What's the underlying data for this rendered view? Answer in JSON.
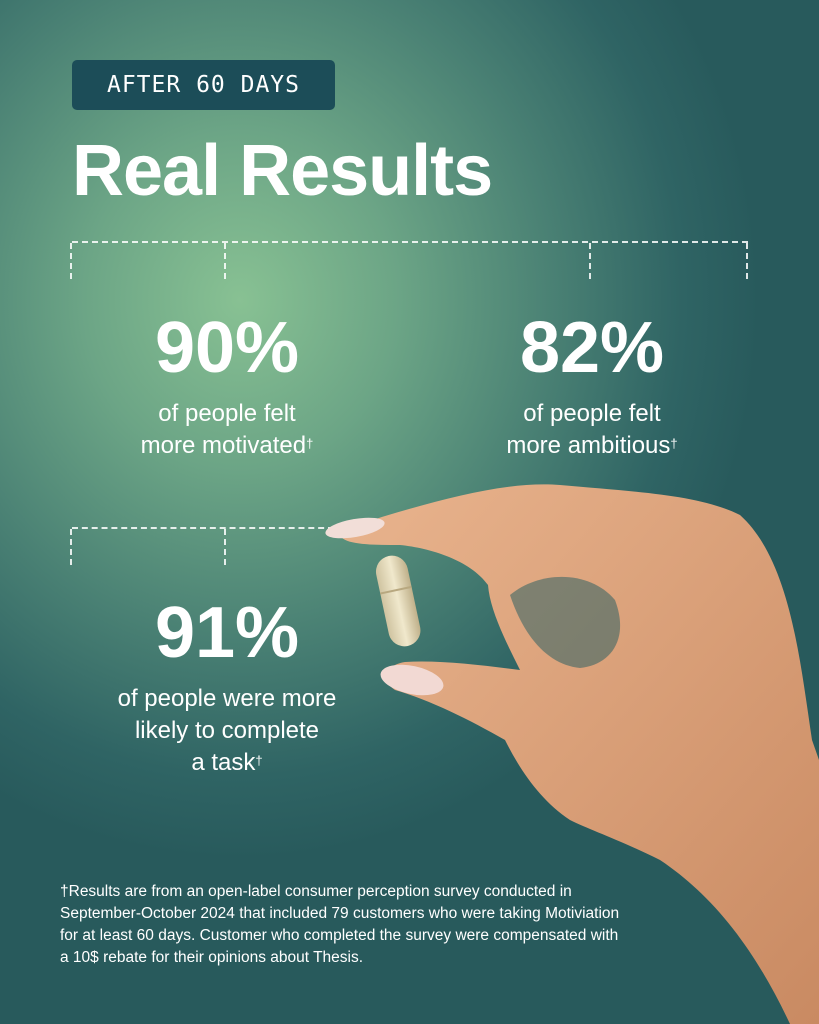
{
  "badge": "AFTER 60 DAYS",
  "title": "Real Results",
  "stats": [
    {
      "value": "90%",
      "line1": "of people felt",
      "line2": "more motivated",
      "mark": "†"
    },
    {
      "value": "82%",
      "line1": "of people felt",
      "line2": "more ambitious",
      "mark": "†"
    },
    {
      "value": "91%",
      "line1": "of people were more",
      "line2": "likely to complete",
      "line3": "a task",
      "mark": "†"
    }
  ],
  "footnote": "†Results are from an open-label consumer perception survey conducted in September-October 2024 that included 79 customers who were taking Motiviation for at least 60 days. Customer who completed the survey were compensated with a 10$ rebate for their opinions about Thesis.",
  "colors": {
    "badge_bg": "#1c4d58",
    "bg_light": "#88c193",
    "bg_dark": "#285a5c"
  }
}
